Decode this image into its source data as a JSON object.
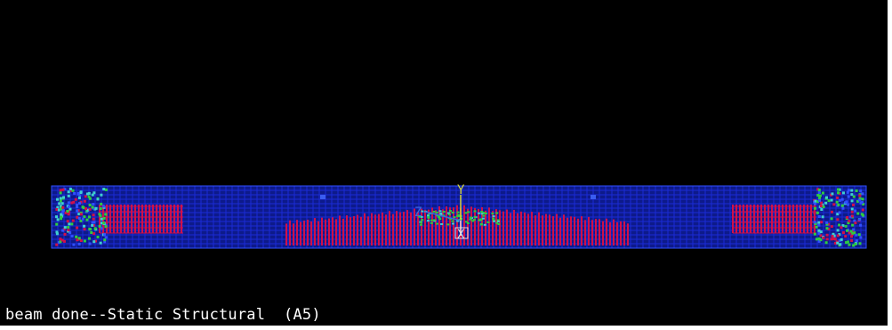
{
  "status": {
    "text": "beam done--Static Structural  (A5)"
  },
  "triad": {
    "y_label": "Y",
    "z_label": "Z",
    "x_label": "X"
  },
  "colors": {
    "background": "#000000",
    "mesh_line": "#1a2bd6",
    "mesh_fill": "#0d1a8a",
    "reinforcement": "#d0104a",
    "support_green": "#2ecc40",
    "support_cyan": "#3fd0d0",
    "axis_y": "#d8d83a",
    "axis_z": "#3a6cd8",
    "axis_x": "#e0e0e0"
  }
}
